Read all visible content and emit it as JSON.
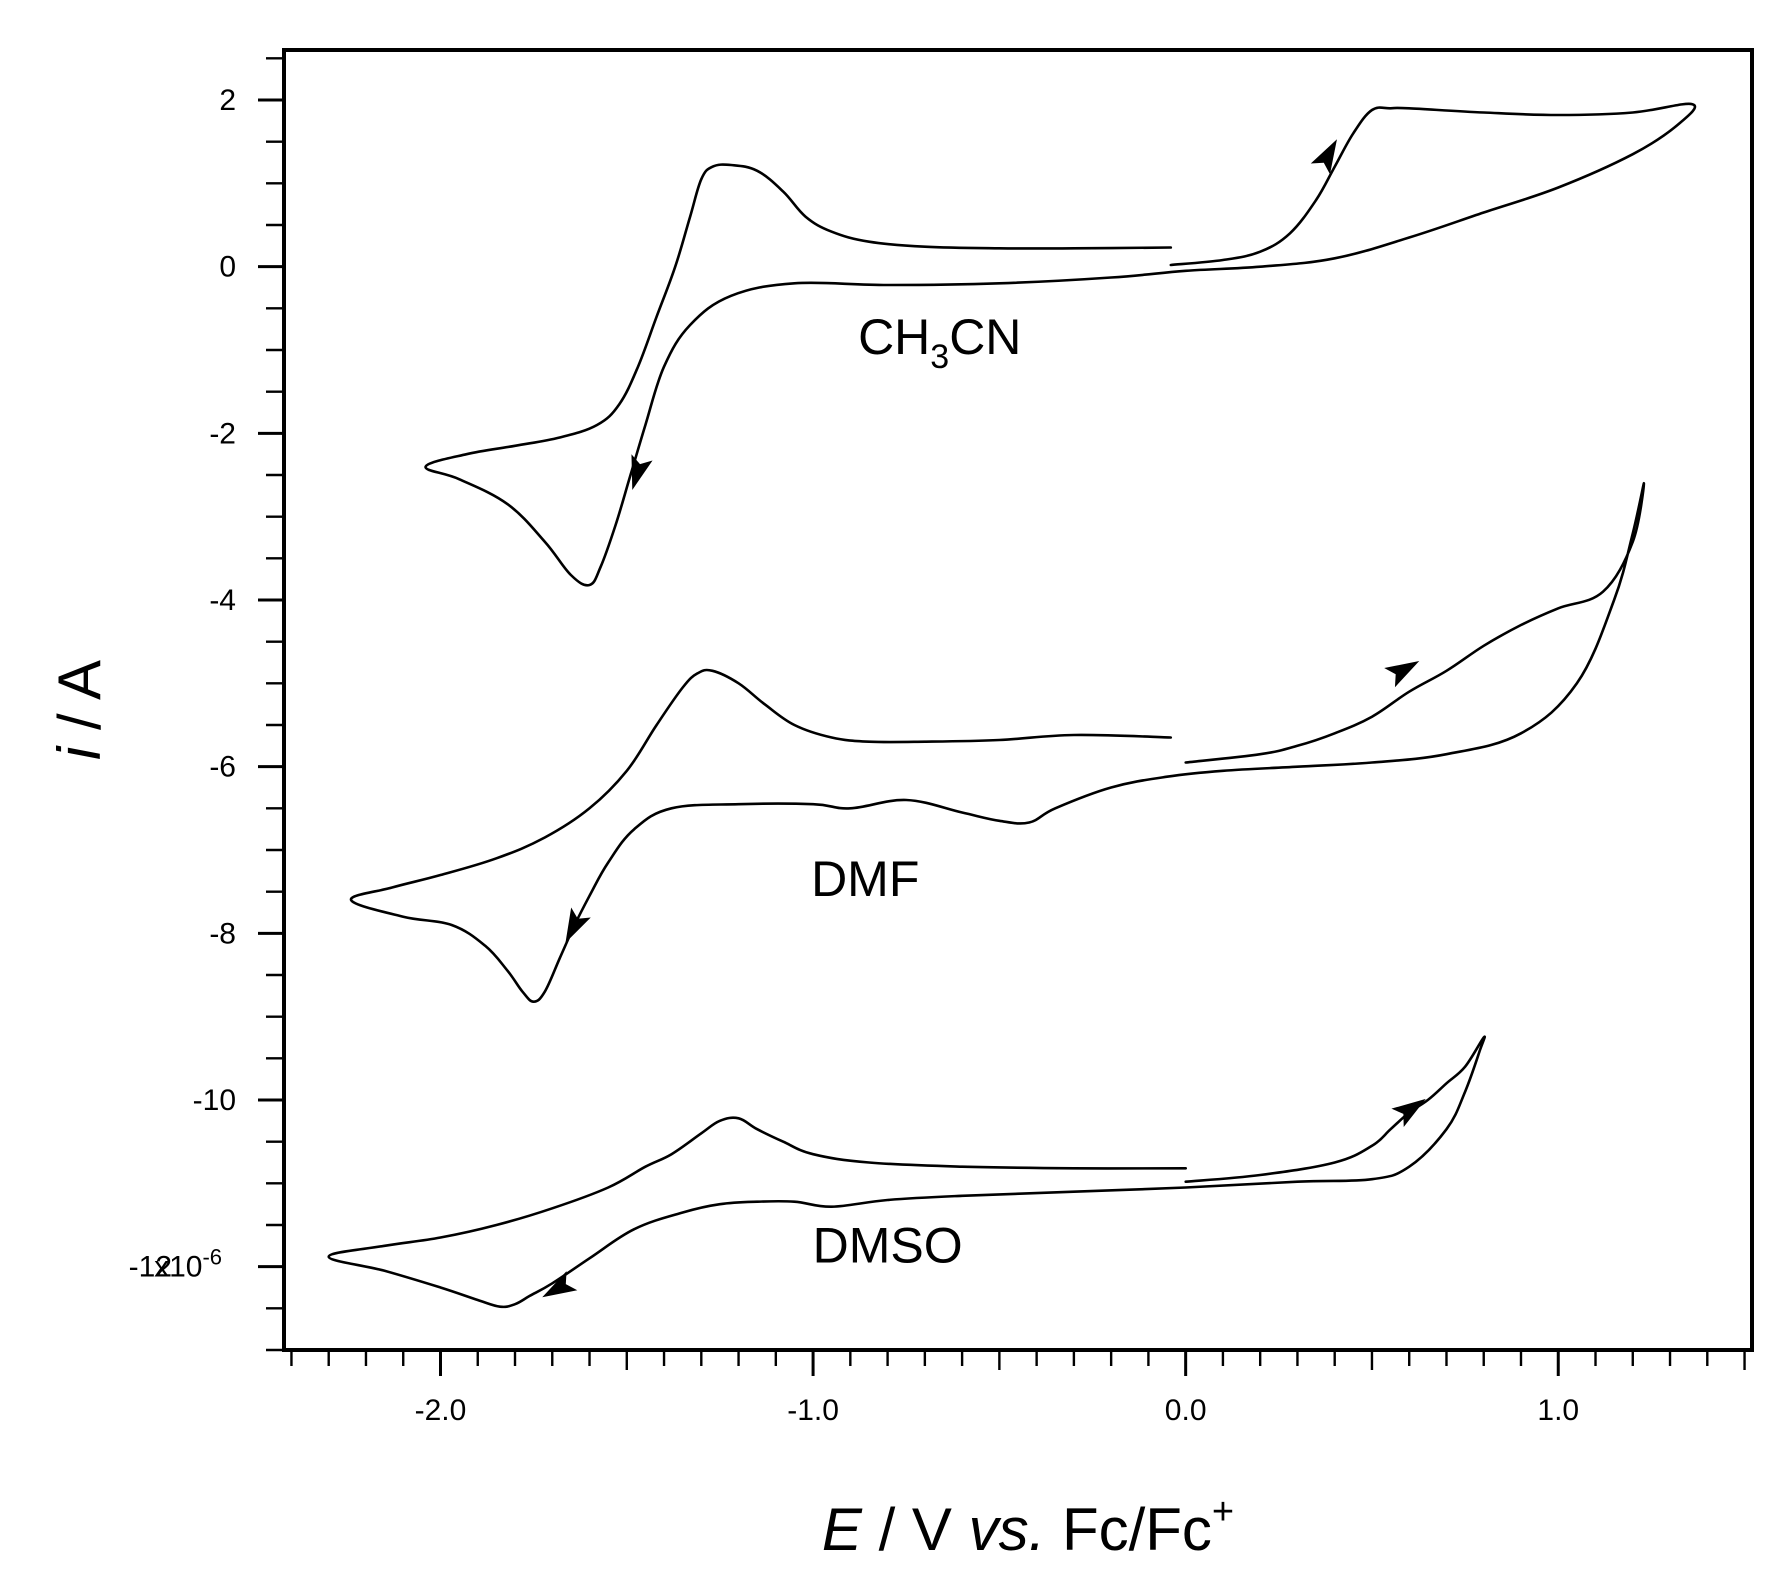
{
  "chart_data": {
    "type": "line",
    "title": "",
    "xlabel": "E / V vs. Fc/Fc+",
    "xlabel_parts": {
      "var": "E",
      "mid": " / V ",
      "vs": "vs.",
      "ref": " Fc/Fc",
      "sup": "+"
    },
    "ylabel": "i / A",
    "ylabel_parts": {
      "var": "i",
      "unit": " / A"
    },
    "xlim": [
      -2.42,
      1.52
    ],
    "ylim": [
      -13.0,
      2.6
    ],
    "x_ticks": [
      -2.0,
      -1.0,
      0.0,
      1.0
    ],
    "x_tick_labels": [
      "-2.0",
      "-1.0",
      "0.0",
      "1.0"
    ],
    "x_minor_step": 0.1,
    "y_ticks": [
      2,
      0,
      -2,
      -4,
      -6,
      -8,
      -10,
      -12
    ],
    "y_tick_labels": [
      "2",
      "0",
      "-2",
      "-4",
      "-6",
      "-8",
      "-10",
      "-12"
    ],
    "y_scale_label": "x10",
    "y_scale_exp": "-6",
    "y_minor_step": 0.5,
    "grid": false,
    "series": [
      {
        "name": "CH3CN",
        "label_main": "CH",
        "label_sub": "3",
        "label_end": "CN",
        "label_pos": [
          -0.66,
          -1.05
        ],
        "x": [
          -0.04,
          -0.3,
          -0.5,
          -0.7,
          -0.85,
          -0.95,
          -1.02,
          -1.08,
          -1.15,
          -1.22,
          -1.27,
          -1.3,
          -1.33,
          -1.37,
          -1.42,
          -1.47,
          -1.52,
          -1.58,
          -1.68,
          -1.8,
          -1.93,
          -2.04,
          -1.95,
          -1.82,
          -1.72,
          -1.65,
          -1.6,
          -1.57,
          -1.53,
          -1.49,
          -1.45,
          -1.4,
          -1.33,
          -1.22,
          -1.05,
          -0.8,
          -0.5,
          -0.2,
          0.0,
          0.2,
          0.4,
          0.6,
          0.8,
          1.0,
          1.2,
          1.32,
          1.36,
          1.2,
          1.0,
          0.8,
          0.6,
          0.55,
          0.5,
          0.45,
          0.4,
          0.35,
          0.28,
          0.2,
          0.1,
          -0.04
        ],
        "y": [
          0.23,
          0.22,
          0.22,
          0.24,
          0.3,
          0.42,
          0.6,
          0.9,
          1.15,
          1.22,
          1.2,
          1.05,
          0.6,
          0.0,
          -0.6,
          -1.2,
          -1.65,
          -1.9,
          -2.05,
          -2.15,
          -2.25,
          -2.4,
          -2.55,
          -2.85,
          -3.3,
          -3.7,
          -3.82,
          -3.6,
          -3.1,
          -2.5,
          -1.9,
          -1.2,
          -0.7,
          -0.35,
          -0.2,
          -0.22,
          -0.2,
          -0.13,
          -0.05,
          0.0,
          0.1,
          0.35,
          0.65,
          0.95,
          1.35,
          1.7,
          1.95,
          1.85,
          1.82,
          1.85,
          1.9,
          1.9,
          1.88,
          1.6,
          1.2,
          0.8,
          0.4,
          0.18,
          0.08,
          0.02
        ],
        "arrows": [
          {
            "x": -1.47,
            "y": -2.45,
            "toward": "down"
          },
          {
            "x": 0.38,
            "y": 1.32,
            "toward": "up"
          }
        ]
      },
      {
        "name": "DMF",
        "label_main": "DMF",
        "label_sub": "",
        "label_end": "",
        "label_pos": [
          -0.86,
          -7.55
        ],
        "x": [
          -0.04,
          -0.3,
          -0.5,
          -0.7,
          -0.85,
          -0.95,
          -1.05,
          -1.13,
          -1.2,
          -1.27,
          -1.31,
          -1.35,
          -1.42,
          -1.5,
          -1.6,
          -1.72,
          -1.85,
          -2.0,
          -2.13,
          -2.24,
          -2.1,
          -1.97,
          -1.88,
          -1.82,
          -1.78,
          -1.75,
          -1.72,
          -1.68,
          -1.64,
          -1.6,
          -1.55,
          -1.48,
          -1.38,
          -1.2,
          -1.0,
          -0.9,
          -0.75,
          -0.6,
          -0.5,
          -0.42,
          -0.35,
          -0.2,
          -0.05,
          0.1,
          0.3,
          0.5,
          0.7,
          0.9,
          1.05,
          1.15,
          1.2,
          1.23,
          1.2,
          1.12,
          1.0,
          0.9,
          0.8,
          0.7,
          0.6,
          0.5,
          0.4,
          0.3,
          0.2,
          0.0
        ],
        "y": [
          -5.65,
          -5.62,
          -5.68,
          -5.7,
          -5.7,
          -5.65,
          -5.5,
          -5.25,
          -5.0,
          -4.85,
          -4.88,
          -5.05,
          -5.5,
          -6.05,
          -6.5,
          -6.85,
          -7.1,
          -7.3,
          -7.45,
          -7.6,
          -7.8,
          -7.9,
          -8.15,
          -8.45,
          -8.7,
          -8.82,
          -8.7,
          -8.3,
          -7.9,
          -7.55,
          -7.15,
          -6.75,
          -6.5,
          -6.45,
          -6.45,
          -6.5,
          -6.4,
          -6.55,
          -6.65,
          -6.67,
          -6.5,
          -6.25,
          -6.12,
          -6.05,
          -6.0,
          -5.95,
          -5.85,
          -5.6,
          -5.0,
          -4.0,
          -3.2,
          -2.6,
          -3.3,
          -3.9,
          -4.1,
          -4.3,
          -4.55,
          -4.85,
          -5.1,
          -5.4,
          -5.6,
          -5.75,
          -5.85,
          -5.95
        ],
        "arrows": [
          {
            "x": -1.64,
            "y": -7.9,
            "toward": "down"
          },
          {
            "x": 0.58,
            "y": -4.85,
            "toward": "up"
          }
        ]
      },
      {
        "name": "DMSO",
        "label_main": "DMSO",
        "label_sub": "",
        "label_end": "",
        "label_pos": [
          -0.8,
          -11.95
        ],
        "x": [
          0.0,
          -0.3,
          -0.6,
          -0.85,
          -1.0,
          -1.08,
          -1.15,
          -1.2,
          -1.25,
          -1.3,
          -1.38,
          -1.45,
          -1.55,
          -1.7,
          -1.85,
          -2.0,
          -2.15,
          -2.3,
          -2.15,
          -2.0,
          -1.9,
          -1.84,
          -1.8,
          -1.76,
          -1.7,
          -1.6,
          -1.48,
          -1.35,
          -1.25,
          -1.15,
          -1.05,
          -0.95,
          -0.8,
          -0.6,
          -0.3,
          0.0,
          0.3,
          0.5,
          0.6,
          0.7,
          0.75,
          0.79,
          0.8,
          0.75,
          0.7,
          0.65,
          0.6,
          0.55,
          0.5,
          0.4,
          0.2,
          0.0
        ],
        "y": [
          -10.82,
          -10.82,
          -10.8,
          -10.75,
          -10.65,
          -10.5,
          -10.35,
          -10.22,
          -10.25,
          -10.4,
          -10.65,
          -10.8,
          -11.05,
          -11.3,
          -11.5,
          -11.65,
          -11.75,
          -11.88,
          -12.05,
          -12.25,
          -12.4,
          -12.48,
          -12.45,
          -12.35,
          -12.2,
          -11.9,
          -11.55,
          -11.35,
          -11.25,
          -11.22,
          -11.22,
          -11.28,
          -11.2,
          -11.15,
          -11.1,
          -11.05,
          -10.98,
          -10.95,
          -10.8,
          -10.35,
          -9.9,
          -9.4,
          -9.25,
          -9.6,
          -9.8,
          -10.0,
          -10.15,
          -10.35,
          -10.55,
          -10.75,
          -10.9,
          -10.98
        ],
        "arrows": [
          {
            "x": -1.68,
            "y": -12.25,
            "toward": "down"
          },
          {
            "x": 0.6,
            "y": -10.12,
            "toward": "up"
          }
        ]
      }
    ]
  }
}
